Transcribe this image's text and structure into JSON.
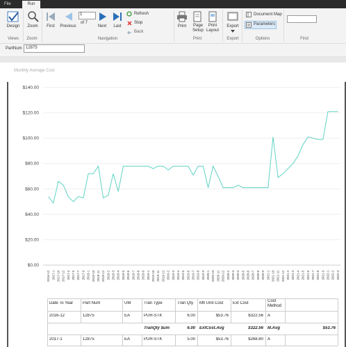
{
  "tabs": [
    "File",
    "Run"
  ],
  "ribbon": {
    "design": "Design",
    "zoom": "Zoom",
    "first": "First",
    "previous": "Previous",
    "page": "1",
    "page_of": "of 7",
    "next": "Next",
    "last": "Last",
    "refresh": "Refresh",
    "stop": "Stop",
    "back": "Back",
    "print": "Print",
    "page_setup": "Page Setup",
    "print_layout": "Print Layout",
    "export": "Export",
    "document_map": "Document Map",
    "parameters": "Parameters",
    "groups": [
      "Views",
      "Zoom",
      "Navigation",
      "Print",
      "Export",
      "Options",
      "Find"
    ]
  },
  "parameter": {
    "label": "PartNum",
    "value": "12875"
  },
  "chart_data": {
    "type": "line",
    "title": "Monthly Average Cost",
    "color": "#5fd3c4",
    "grid": true,
    "categories": [
      "2016-12",
      "2017-1",
      "2017-10",
      "2017-12",
      "2017-4",
      "2017-5",
      "2017-7",
      "2017-9",
      "2018-1",
      "2018-10",
      "2018-11",
      "2018-12",
      "2018-2",
      "2018-3",
      "2018-4",
      "2018-5",
      "2018-6",
      "2018-7",
      "2018-8",
      "2018-9",
      "2019-1",
      "2019-10",
      "2019-11",
      "2019-12",
      "2019-2",
      "2019-3",
      "2019-4",
      "2019-5",
      "2019-6",
      "2019-7",
      "2019-8",
      "2019-9",
      "2020-1",
      "2020-10",
      "2020-11",
      "2020-12",
      "2020-2",
      "2020-3",
      "2020-4",
      "2020-5",
      "2020-6",
      "2020-7",
      "2020-8",
      "2020-9",
      "2021-1",
      "2021-10",
      "2021-11",
      "2021-12",
      "2021-2",
      "2021-3",
      "2021-4",
      "2021-5",
      "2021-6",
      "2021-7",
      "2021-8",
      "2021-9",
      "2022-1",
      "2022-2",
      "2022-3"
    ],
    "values": [
      54,
      49,
      66,
      63,
      54,
      50,
      54,
      53,
      72,
      72,
      78,
      53,
      55,
      72,
      58,
      78,
      78,
      78,
      78,
      78,
      78,
      76,
      78,
      78,
      75,
      78,
      78,
      78,
      78,
      71,
      78,
      78,
      61,
      78,
      70,
      61,
      61,
      61,
      63,
      61,
      61,
      61,
      61,
      61,
      61,
      101,
      69,
      72,
      76,
      80,
      86,
      95,
      101,
      100,
      99,
      99,
      121,
      121,
      121
    ],
    "ylim": [
      0,
      140
    ],
    "yticks": [
      {
        "value": 0,
        "label": "$0.00"
      },
      {
        "value": 20,
        "label": "$20.00"
      },
      {
        "value": 40,
        "label": "$40.00"
      },
      {
        "value": 60,
        "label": "$60.00"
      },
      {
        "value": 80,
        "label": "$80.00"
      },
      {
        "value": 100,
        "label": "$100.00"
      },
      {
        "value": 120,
        "label": "$120.00"
      },
      {
        "value": 140,
        "label": "$140.00"
      }
    ]
  },
  "table": {
    "headers": [
      "Date To Year",
      "Part Num",
      "UM",
      "Tran Type",
      "Tran Qty",
      "Mtl Unit Cost",
      "Ext Cost",
      "Cost Method"
    ],
    "rows": [
      [
        "2016-12",
        "12875",
        "EA",
        "PUR-STK",
        "6.00",
        "$53.76",
        "$322.56",
        "A"
      ],
      [
        "2017-1",
        "12875",
        "EA",
        "PUR-STK",
        "5.00",
        "$53.76",
        "$268.80",
        "A"
      ]
    ],
    "summary": {
      "label": "TranQty $um",
      "qty": "6.00",
      "avg_label": "ExtCost.Avg",
      "ext": "$322.56",
      "mavg_label": "M.Avg",
      "mavg": "$53.76"
    }
  }
}
